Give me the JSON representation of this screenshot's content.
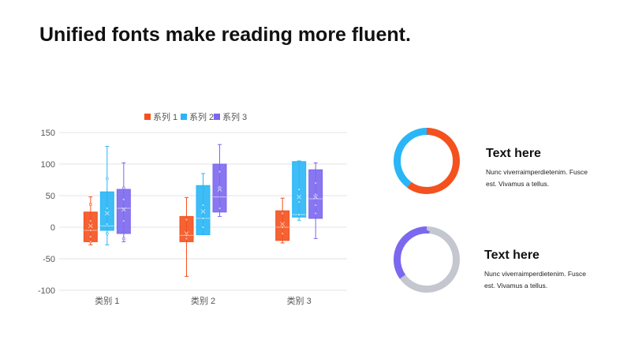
{
  "title": "Unified fonts make reading more fluent.",
  "colors": {
    "series1": "#F4511E",
    "series2": "#29B6F6",
    "series3": "#7B68EE",
    "donut_track": "#C4C7CF"
  },
  "chart_data": [
    {
      "type": "box",
      "title": "",
      "xlabel": "",
      "ylabel": "",
      "categories": [
        "类别 1",
        "类别 2",
        "类别 3"
      ],
      "ylim": [
        -100,
        150
      ],
      "yticks": [
        150,
        100,
        50,
        0,
        -50,
        -100
      ],
      "grid": true,
      "legend_position": "top",
      "series": [
        {
          "name": "系列 1",
          "color": "#F4511E",
          "boxes": [
            {
              "min": -28,
              "q1": -23,
              "median": -5,
              "q3": 24,
              "max": 48,
              "mean": 2,
              "points": [
                36,
                10,
                -5,
                -15,
                -23
              ]
            },
            {
              "min": -78,
              "q1": -23,
              "median": -13,
              "q3": 17,
              "max": 47,
              "mean": -10,
              "points": [
                12,
                -13,
                -18
              ]
            },
            {
              "min": -25,
              "q1": -21,
              "median": 0,
              "q3": 26,
              "max": 46,
              "mean": 5,
              "points": [
                22,
                0,
                -10
              ]
            }
          ]
        },
        {
          "name": "系列 2",
          "color": "#29B6F6",
          "boxes": [
            {
              "min": -28,
              "q1": -5,
              "median": 2,
              "q3": 56,
              "max": 128,
              "mean": 22,
              "points": [
                77,
                30,
                5,
                -10
              ]
            },
            {
              "min": -12,
              "q1": -12,
              "median": 14,
              "q3": 66,
              "max": 85,
              "mean": 25,
              "points": [
                35,
                14,
                0
              ]
            },
            {
              "min": 11,
              "q1": 16,
              "median": 20,
              "q3": 104,
              "max": 105,
              "mean": 48,
              "points": [
                60,
                40,
                20
              ]
            }
          ]
        },
        {
          "name": "系列 3",
          "color": "#7B68EE",
          "boxes": [
            {
              "min": -23,
              "q1": -10,
              "median": 30,
              "q3": 60,
              "max": 102,
              "mean": 28,
              "points": [
                62,
                44,
                10,
                -18
              ]
            },
            {
              "min": 17,
              "q1": 24,
              "median": 48,
              "q3": 100,
              "max": 131,
              "mean": 60,
              "points": [
                88,
                64,
                30
              ]
            },
            {
              "min": -18,
              "q1": 14,
              "median": 45,
              "q3": 91,
              "max": 102,
              "mean": 48,
              "points": [
                70,
                52,
                35,
                22
              ]
            }
          ]
        }
      ]
    },
    {
      "type": "pie",
      "variant": "donut",
      "values": [
        0.6,
        0.4
      ],
      "colors": [
        "#F4511E",
        "#29B6F6"
      ]
    },
    {
      "type": "pie",
      "variant": "donut",
      "values": [
        0.65,
        0.35
      ],
      "colors": [
        "#C4C7CF",
        "#7B68EE"
      ]
    }
  ],
  "cards": [
    {
      "title": "Text here",
      "body": "Nunc  viverraimperdietenim.  Fusce\nest. Vivamus  a tellus."
    },
    {
      "title": "Text here",
      "body": "Nunc  viverraimperdietenim.  Fusce\nest. Vivamus  a tellus."
    }
  ]
}
